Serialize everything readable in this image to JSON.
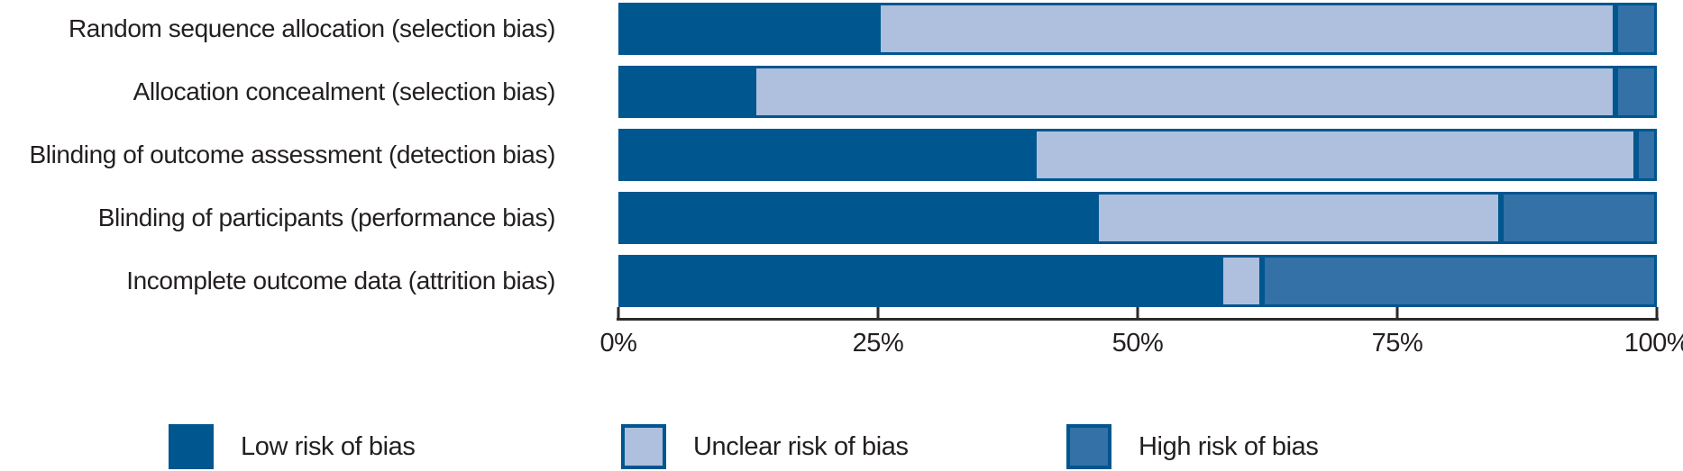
{
  "chart_data": {
    "type": "bar",
    "variant": "horizontal-stacked-percent",
    "title": "",
    "categories": [
      "Random sequence allocation (selection bias)",
      "Allocation concealment (selection bias)",
      "Blinding of outcome assessment (detection bias)",
      "Blinding of participants (performance bias)",
      "Incomplete outcome data (attrition bias)"
    ],
    "series": [
      {
        "key": "low-risk",
        "name": "Low risk of bias",
        "color": "#00568f",
        "values": [
          25,
          13,
          40,
          46,
          58
        ]
      },
      {
        "key": "unclear-risk",
        "name": "Unclear risk of bias",
        "color": "#aec0dd",
        "values": [
          71,
          83,
          58,
          39,
          4
        ]
      },
      {
        "key": "high-risk",
        "name": "High risk of bias",
        "color": "#3371a6",
        "values": [
          4,
          4,
          2,
          15,
          38
        ]
      }
    ],
    "x_axis": {
      "ticks": [
        "0%",
        "25%",
        "50%",
        "75%",
        "100%"
      ],
      "min": 0,
      "max": 100,
      "unit": "%"
    },
    "grid": false,
    "legend": {
      "position": "bottom"
    },
    "colors": {
      "bar_border": "#00568f",
      "axis": "#2b2b2b",
      "text": "#231f20",
      "background": "#ffffff"
    }
  }
}
